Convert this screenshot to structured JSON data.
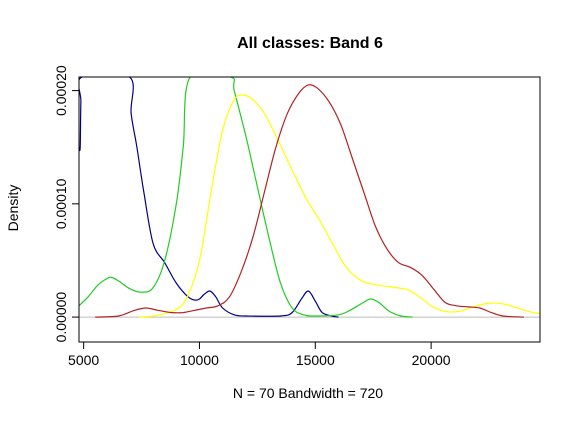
{
  "chart_data": {
    "type": "line",
    "title": "All classes: Band 6",
    "xlabel": "N = 70   Bandwidth = 720",
    "ylabel": "Density",
    "xlim": [
      4800,
      24700
    ],
    "ylim": [
      -2.2e-05,
      0.000212
    ],
    "x_ticks": [
      5000,
      10000,
      15000,
      20000
    ],
    "x_tick_labels": [
      "5000",
      "10000",
      "15000",
      "20000"
    ],
    "y_ticks": [
      0,
      0.0001,
      0.0002
    ],
    "y_tick_labels": [
      "0.00000",
      "0.00010",
      "0.00020"
    ],
    "baseline": 0,
    "baseline_color": "#bbbbbb",
    "grid": false,
    "legend": "none",
    "series": [
      {
        "color": "#00008b",
        "points": [
          [
            4800,
            0.00015
          ],
          [
            4850,
            0.00015
          ],
          [
            4880,
            0.00019
          ],
          [
            4930,
            0.000212
          ],
          [
            6980,
            0.000212
          ],
          [
            7050,
            0.00018
          ],
          [
            7300,
            0.00015
          ],
          [
            7600,
            0.00011
          ],
          [
            8000,
            6.5e-05
          ],
          [
            8500,
            4.8e-05
          ],
          [
            9000,
            3e-05
          ],
          [
            9500,
            1.8e-05
          ],
          [
            9800,
            1.5e-05
          ],
          [
            10000,
            1.6e-05
          ],
          [
            10200,
            2e-05
          ],
          [
            10450,
            2.3e-05
          ],
          [
            10700,
            1.8e-05
          ],
          [
            11000,
            8e-06
          ],
          [
            11500,
            2e-06
          ],
          [
            12000,
            1e-06
          ],
          [
            13500,
            1e-06
          ],
          [
            14000,
            4e-06
          ],
          [
            14400,
            1.6e-05
          ],
          [
            14700,
            2.3e-05
          ],
          [
            15000,
            1.4e-05
          ],
          [
            15300,
            4e-06
          ],
          [
            15700,
            1e-06
          ],
          [
            16000,
            0.0
          ]
        ]
      },
      {
        "color": "#22cc22",
        "points": [
          [
            4800,
            1e-05
          ],
          [
            5200,
            1.8e-05
          ],
          [
            5600,
            2.8e-05
          ],
          [
            6000,
            3.4e-05
          ],
          [
            6200,
            3.5e-05
          ],
          [
            6500,
            3.2e-05
          ],
          [
            7000,
            2.5e-05
          ],
          [
            7500,
            2.2e-05
          ],
          [
            8000,
            2.6e-05
          ],
          [
            8500,
            5e-05
          ],
          [
            9000,
            0.0001
          ],
          [
            9300,
            0.00015
          ],
          [
            9600,
            0.000212
          ],
          [
            11350,
            0.000212
          ],
          [
            11500,
            0.0002
          ],
          [
            12000,
            0.00016
          ],
          [
            12500,
            0.000115
          ],
          [
            13000,
            7e-05
          ],
          [
            13500,
            3e-05
          ],
          [
            14000,
            8e-06
          ],
          [
            14500,
            2e-06
          ],
          [
            15000,
            1e-06
          ],
          [
            16000,
            2e-06
          ],
          [
            16500,
            6e-06
          ],
          [
            17000,
            1.2e-05
          ],
          [
            17400,
            1.6e-05
          ],
          [
            17800,
            1.2e-05
          ],
          [
            18200,
            5e-06
          ],
          [
            18700,
            1e-06
          ],
          [
            19200,
            0.0
          ]
        ]
      },
      {
        "color": "#ffff00",
        "points": [
          [
            7400,
            0.0
          ],
          [
            8000,
            1e-06
          ],
          [
            8800,
            5e-06
          ],
          [
            9400,
            1.5e-05
          ],
          [
            10000,
            5e-05
          ],
          [
            10500,
            0.00011
          ],
          [
            11000,
            0.000165
          ],
          [
            11500,
            0.000192
          ],
          [
            11900,
            0.000196
          ],
          [
            12300,
            0.000192
          ],
          [
            12800,
            0.00018
          ],
          [
            13300,
            0.00016
          ],
          [
            14000,
            0.00013
          ],
          [
            14600,
            0.000105
          ],
          [
            15200,
            8.5e-05
          ],
          [
            15800,
            6.3e-05
          ],
          [
            16300,
            4.5e-05
          ],
          [
            17000,
            3.2e-05
          ],
          [
            17800,
            2.8e-05
          ],
          [
            18500,
            2.6e-05
          ],
          [
            19000,
            2.4e-05
          ],
          [
            19500,
            1.8e-05
          ],
          [
            20000,
            1e-05
          ],
          [
            20600,
            5e-06
          ],
          [
            21200,
            5e-06
          ],
          [
            21800,
            9e-06
          ],
          [
            22400,
            1.2e-05
          ],
          [
            23000,
            1.2e-05
          ],
          [
            23600,
            9e-06
          ],
          [
            24200,
            5e-06
          ],
          [
            24700,
            3e-06
          ]
        ]
      },
      {
        "color": "#b22222",
        "points": [
          [
            5500,
            0.0
          ],
          [
            6500,
            1e-06
          ],
          [
            7200,
            6e-06
          ],
          [
            7700,
            8e-06
          ],
          [
            8200,
            6e-06
          ],
          [
            8800,
            4e-06
          ],
          [
            9300,
            4e-06
          ],
          [
            9800,
            6e-06
          ],
          [
            10300,
            8e-06
          ],
          [
            10800,
            1e-05
          ],
          [
            11300,
            1.8e-05
          ],
          [
            11800,
            4e-05
          ],
          [
            12300,
            7e-05
          ],
          [
            12800,
            0.00011
          ],
          [
            13300,
            0.00015
          ],
          [
            13800,
            0.00018
          ],
          [
            14300,
            0.000198
          ],
          [
            14700,
            0.000205
          ],
          [
            15100,
            0.000202
          ],
          [
            15600,
            0.00019
          ],
          [
            16100,
            0.00017
          ],
          [
            16600,
            0.00014
          ],
          [
            17100,
            0.00011
          ],
          [
            17600,
            8e-05
          ],
          [
            18100,
            6e-05
          ],
          [
            18600,
            4.8e-05
          ],
          [
            19100,
            4.4e-05
          ],
          [
            19600,
            3.7e-05
          ],
          [
            20100,
            2.5e-05
          ],
          [
            20600,
            1.3e-05
          ],
          [
            21100,
            1e-05
          ],
          [
            21600,
            9e-06
          ],
          [
            22100,
            8e-06
          ],
          [
            22600,
            4e-06
          ],
          [
            23100,
            1e-06
          ],
          [
            24000,
            0.0
          ]
        ]
      }
    ]
  }
}
